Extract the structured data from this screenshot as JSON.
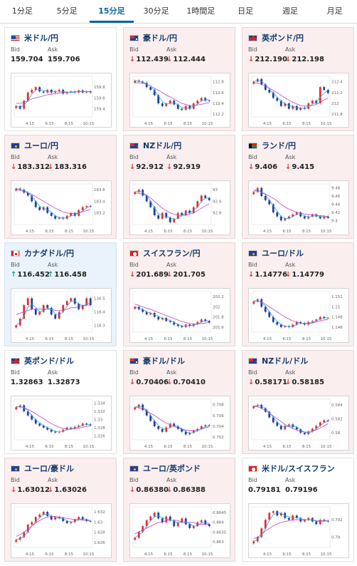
{
  "tabs": [
    "1分足",
    "5分足",
    "15分足",
    "30分足",
    "1時間足",
    "日足",
    "週足",
    "月足"
  ],
  "active_tab": 2,
  "labels": {
    "bid": "Bid",
    "ask": "Ask"
  },
  "cards": [
    {
      "name": "米ドル/円",
      "flag": "us",
      "trend": "flat",
      "arrow": "none",
      "bid": "159.704",
      "ask": "159.706",
      "yticks": [
        "159.8",
        "159.6",
        "159.4"
      ],
      "ylim": [
        159.25,
        160.0
      ],
      "close": [
        159.45,
        159.4,
        159.55,
        159.7,
        159.75,
        159.8,
        159.72,
        159.7,
        159.75,
        159.7,
        159.72,
        159.75,
        159.68,
        159.7,
        159.72,
        159.7,
        159.74,
        159.7,
        159.72,
        159.7
      ],
      "ma": [
        159.5,
        159.5,
        159.52,
        159.55,
        159.58,
        159.6,
        159.62,
        159.64,
        159.66,
        159.67,
        159.68,
        159.69,
        159.7,
        159.7,
        159.71,
        159.71,
        159.72,
        159.72,
        159.72,
        159.72
      ]
    },
    {
      "name": "豪ドル/円",
      "flag": "au",
      "trend": "down",
      "arrow": "down",
      "bid": "112.439",
      "ask": "112.444",
      "yticks": [
        "112.8",
        "112.6",
        "112.4",
        "112.2"
      ],
      "ylim": [
        112.15,
        112.9
      ],
      "close": [
        112.82,
        112.8,
        112.78,
        112.7,
        112.65,
        112.55,
        112.4,
        112.35,
        112.4,
        112.45,
        112.38,
        112.3,
        112.28,
        112.35,
        112.3,
        112.4,
        112.45,
        112.5,
        112.45,
        112.44
      ],
      "ma": [
        112.78,
        112.78,
        112.77,
        112.75,
        112.72,
        112.68,
        112.64,
        112.6,
        112.55,
        112.52,
        112.48,
        112.44,
        112.4,
        112.38,
        112.36,
        112.36,
        112.37,
        112.38,
        112.4,
        112.41
      ]
    },
    {
      "name": "英ポンド/円",
      "flag": "gb",
      "trend": "down",
      "arrow": "down",
      "bid": "212.190",
      "ask": "212.198",
      "yticks": [
        "212.4",
        "212.2",
        "212",
        "211.8"
      ],
      "ylim": [
        211.75,
        212.5
      ],
      "close": [
        212.4,
        212.45,
        212.35,
        212.25,
        212.2,
        212.1,
        212.05,
        211.95,
        212.0,
        211.9,
        211.95,
        211.88,
        211.92,
        211.9,
        212.0,
        212.05,
        212.0,
        212.3,
        212.25,
        212.19
      ],
      "ma": [
        212.38,
        212.37,
        212.35,
        212.32,
        212.28,
        212.24,
        212.2,
        212.15,
        212.1,
        212.06,
        212.02,
        211.99,
        211.96,
        211.95,
        211.95,
        211.96,
        211.98,
        212.02,
        212.06,
        212.1
      ]
    },
    {
      "name": "ユーロ/円",
      "flag": "eu",
      "trend": "down",
      "arrow": "down",
      "bid": "183.312",
      "ask": "183.316",
      "yticks": [
        "183.6",
        "183.4",
        "183.2"
      ],
      "ylim": [
        183.0,
        183.7
      ],
      "close": [
        183.62,
        183.6,
        183.55,
        183.5,
        183.4,
        183.3,
        183.25,
        183.3,
        183.2,
        183.15,
        183.1,
        183.12,
        183.1,
        183.15,
        183.2,
        183.15,
        183.25,
        183.3,
        183.32,
        183.31
      ],
      "ma": [
        183.6,
        183.59,
        183.57,
        183.55,
        183.52,
        183.48,
        183.44,
        183.4,
        183.36,
        183.32,
        183.28,
        183.25,
        183.22,
        183.2,
        183.19,
        183.19,
        183.2,
        183.22,
        183.24,
        183.26
      ]
    },
    {
      "name": "NZドル/円",
      "flag": "nz",
      "trend": "down",
      "arrow": "down",
      "bid": "92.912",
      "ask": "92.919",
      "yticks": [
        "93",
        "92.9",
        "92.8"
      ],
      "ylim": [
        92.7,
        93.05
      ],
      "close": [
        92.98,
        93.0,
        92.95,
        92.9,
        92.85,
        92.78,
        92.75,
        92.8,
        92.76,
        92.72,
        92.75,
        92.8,
        92.78,
        92.82,
        92.8,
        92.85,
        92.9,
        92.95,
        92.93,
        92.91
      ],
      "ma": [
        92.97,
        92.97,
        92.96,
        92.95,
        92.93,
        92.9,
        92.87,
        92.84,
        92.82,
        92.8,
        92.79,
        92.78,
        92.78,
        92.78,
        92.79,
        92.8,
        92.82,
        92.84,
        92.86,
        92.88
      ]
    },
    {
      "name": "ランド/円",
      "flag": "za",
      "trend": "down",
      "arrow": "down",
      "bid": "9.406",
      "ask": "9.415",
      "yticks": [
        "9.48",
        "9.46",
        "9.44",
        "9.42",
        "9.4"
      ],
      "ylim": [
        9.39,
        9.49
      ],
      "close": [
        9.47,
        9.48,
        9.46,
        9.45,
        9.44,
        9.42,
        9.41,
        9.4,
        9.405,
        9.41,
        9.415,
        9.42,
        9.41,
        9.405,
        9.41,
        9.415,
        9.41,
        9.405,
        9.41,
        9.406
      ],
      "ma": [
        9.475,
        9.474,
        9.47,
        9.465,
        9.46,
        9.455,
        9.448,
        9.44,
        9.433,
        9.428,
        9.424,
        9.42,
        9.418,
        9.416,
        9.415,
        9.414,
        9.413,
        9.412,
        9.411,
        9.41
      ]
    },
    {
      "name": "カナダドル/円",
      "flag": "ca",
      "trend": "up",
      "arrow": "up",
      "bid": "116.452",
      "ask": "116.458",
      "yticks": [
        "116.5",
        "116.4",
        "116.3"
      ],
      "ylim": [
        116.25,
        116.55
      ],
      "close": [
        116.3,
        116.35,
        116.45,
        116.5,
        116.42,
        116.38,
        116.4,
        116.45,
        116.43,
        116.38,
        116.35,
        116.4,
        116.45,
        116.48,
        116.5,
        116.46,
        116.42,
        116.45,
        116.5,
        116.45
      ],
      "ma": [
        116.38,
        116.39,
        116.4,
        116.41,
        116.42,
        116.42,
        116.42,
        116.42,
        116.42,
        116.42,
        116.41,
        116.41,
        116.41,
        116.42,
        116.43,
        116.43,
        116.44,
        116.44,
        116.45,
        116.45
      ]
    },
    {
      "name": "スイスフラン/円",
      "flag": "ch",
      "trend": "down",
      "arrow": "down",
      "bid": "201.689",
      "ask": "201.705",
      "yticks": [
        "202.2",
        "202",
        "201.8",
        "201.6"
      ],
      "ylim": [
        201.5,
        202.3
      ],
      "close": [
        202.0,
        201.95,
        201.9,
        201.85,
        201.88,
        201.8,
        201.75,
        201.78,
        201.72,
        201.7,
        201.65,
        201.62,
        201.6,
        201.65,
        201.62,
        201.66,
        201.7,
        201.75,
        201.72,
        201.69
      ],
      "ma": [
        202.05,
        202.03,
        202.0,
        201.97,
        201.95,
        201.92,
        201.89,
        201.86,
        201.83,
        201.8,
        201.77,
        201.74,
        201.71,
        201.69,
        201.67,
        201.66,
        201.66,
        201.67,
        201.68,
        201.69
      ]
    },
    {
      "name": "ユーロ/ドル",
      "flag": "eu",
      "trend": "down",
      "arrow": "down",
      "bid": "1.14776",
      "ask": "1.14779",
      "yticks": [
        "1.152",
        "1.15",
        "1.148",
        "1.146"
      ],
      "ylim": [
        1.145,
        1.153
      ],
      "close": [
        1.151,
        1.1515,
        1.15,
        1.149,
        1.148,
        1.147,
        1.1465,
        1.146,
        1.1462,
        1.146,
        1.1465,
        1.147,
        1.1468,
        1.1465,
        1.147,
        1.1472,
        1.1475,
        1.148,
        1.1478,
        1.1478
      ],
      "ma": [
        1.1512,
        1.1511,
        1.151,
        1.1505,
        1.15,
        1.1495,
        1.149,
        1.1485,
        1.148,
        1.1476,
        1.1472,
        1.147,
        1.1468,
        1.1467,
        1.1467,
        1.1468,
        1.147,
        1.1472,
        1.1474,
        1.1475
      ]
    },
    {
      "name": "英ポンド/ドル",
      "flag": "gb",
      "trend": "flat",
      "arrow": "none",
      "bid": "1.32863",
      "ask": "1.32873",
      "yticks": [
        "1.334",
        "1.332",
        "1.33",
        "1.328",
        "1.326"
      ],
      "ylim": [
        1.325,
        1.335
      ],
      "close": [
        1.333,
        1.3335,
        1.332,
        1.331,
        1.33,
        1.329,
        1.3285,
        1.328,
        1.3275,
        1.327,
        1.3268,
        1.327,
        1.3275,
        1.328,
        1.3278,
        1.3282,
        1.3285,
        1.329,
        1.3288,
        1.3286
      ],
      "ma": [
        1.3332,
        1.3331,
        1.333,
        1.3325,
        1.332,
        1.3314,
        1.3308,
        1.3302,
        1.3296,
        1.329,
        1.3285,
        1.3281,
        1.3278,
        1.3276,
        1.3276,
        1.3277,
        1.3279,
        1.3281,
        1.3283,
        1.3285
      ]
    },
    {
      "name": "豪ドル/ドル",
      "flag": "au",
      "trend": "down",
      "arrow": "down",
      "bid": "0.70406",
      "ask": "0.70410",
      "yticks": [
        "0.708",
        "0.706",
        "0.704",
        "0.702"
      ],
      "ylim": [
        0.7015,
        0.709
      ],
      "close": [
        0.7075,
        0.708,
        0.707,
        0.706,
        0.705,
        0.704,
        0.7035,
        0.703,
        0.7038,
        0.7045,
        0.704,
        0.7035,
        0.703,
        0.7025,
        0.7028,
        0.7032,
        0.7035,
        0.704,
        0.7042,
        0.7041
      ],
      "ma": [
        0.7075,
        0.7074,
        0.7072,
        0.7068,
        0.7064,
        0.706,
        0.7055,
        0.705,
        0.7046,
        0.7043,
        0.704,
        0.7037,
        0.7035,
        0.7033,
        0.7032,
        0.7032,
        0.7033,
        0.7035,
        0.7037,
        0.7039
      ]
    },
    {
      "name": "NZドル/ドル",
      "flag": "nz",
      "trend": "down",
      "arrow": "down",
      "bid": "0.58171",
      "ask": "0.58185",
      "yticks": [
        "0.584",
        "0.582",
        "0.58"
      ],
      "ylim": [
        0.579,
        0.5848
      ],
      "close": [
        0.5838,
        0.584,
        0.5835,
        0.583,
        0.5822,
        0.5815,
        0.581,
        0.5805,
        0.581,
        0.5812,
        0.5808,
        0.5805,
        0.58,
        0.5798,
        0.5802,
        0.5806,
        0.581,
        0.5815,
        0.5818,
        0.5817
      ],
      "ma": [
        0.5838,
        0.5837,
        0.5835,
        0.5832,
        0.5828,
        0.5824,
        0.582,
        0.5816,
        0.5812,
        0.5809,
        0.5806,
        0.5804,
        0.5802,
        0.5801,
        0.5801,
        0.5802,
        0.5804,
        0.5807,
        0.581,
        0.5813
      ]
    },
    {
      "name": "ユーロ/豪ドル",
      "flag": "eu",
      "trend": "down",
      "arrow": "down",
      "bid": "1.63012",
      "ask": "1.63026",
      "yticks": [
        "1.632",
        "1.63",
        "1.628",
        "1.626"
      ],
      "ylim": [
        1.625,
        1.633
      ],
      "close": [
        1.6265,
        1.627,
        1.628,
        1.6295,
        1.63,
        1.631,
        1.6315,
        1.632,
        1.6312,
        1.6305,
        1.631,
        1.6308,
        1.6302,
        1.6298,
        1.63,
        1.6305,
        1.631,
        1.6305,
        1.6302,
        1.6301
      ],
      "ma": [
        1.6272,
        1.6275,
        1.628,
        1.6286,
        1.6292,
        1.6298,
        1.6303,
        1.6307,
        1.631,
        1.6311,
        1.6311,
        1.631,
        1.6309,
        1.6307,
        1.6306,
        1.6305,
        1.6305,
        1.6304,
        1.6303,
        1.6302
      ]
    },
    {
      "name": "ユーロ/英ポンド",
      "flag": "eu",
      "trend": "down",
      "arrow": "down",
      "bid": "0.86380",
      "ask": "0.86388",
      "yticks": [
        "0.8645",
        "0.864",
        "0.8635",
        "0.863"
      ],
      "ylim": [
        0.8627,
        0.8648
      ],
      "close": [
        0.8632,
        0.8635,
        0.8638,
        0.8641,
        0.8643,
        0.8645,
        0.8642,
        0.864,
        0.8643,
        0.8641,
        0.8638,
        0.864,
        0.8642,
        0.8639,
        0.8637,
        0.8638,
        0.864,
        0.8641,
        0.8639,
        0.8638
      ],
      "ma": [
        0.8634,
        0.8635,
        0.8636,
        0.8637,
        0.8638,
        0.8639,
        0.864,
        0.864,
        0.8641,
        0.8641,
        0.8641,
        0.8641,
        0.864,
        0.864,
        0.864,
        0.864,
        0.8639,
        0.8639,
        0.8639,
        0.8639
      ]
    },
    {
      "name": "米ドル/スイスフラン",
      "flag": "ch",
      "trend": "flat",
      "arrow": "none",
      "bid": "0.79181",
      "ask": "0.79196",
      "yticks": [
        "0.792",
        "0.79"
      ],
      "ylim": [
        0.7888,
        0.7935
      ],
      "close": [
        0.7895,
        0.79,
        0.791,
        0.792,
        0.7928,
        0.793,
        0.7925,
        0.7928,
        0.7922,
        0.792,
        0.7925,
        0.7922,
        0.7918,
        0.792,
        0.7922,
        0.7918,
        0.7915,
        0.792,
        0.7919,
        0.7918
      ],
      "ma": [
        0.7898,
        0.79,
        0.7903,
        0.7907,
        0.791,
        0.7913,
        0.7915,
        0.7917,
        0.7918,
        0.7919,
        0.792,
        0.792,
        0.792,
        0.792,
        0.792,
        0.792,
        0.7919,
        0.7919,
        0.7919,
        0.7919
      ]
    }
  ],
  "xticks": [
    "4:15",
    "6:15",
    "8:15",
    "10:15"
  ],
  "colors": {
    "candle_up": "#e03030",
    "candle_down": "#1f3f96",
    "ma_long": "#c040c0",
    "ma_short": "#2aa6d6",
    "axis": "#666666"
  }
}
